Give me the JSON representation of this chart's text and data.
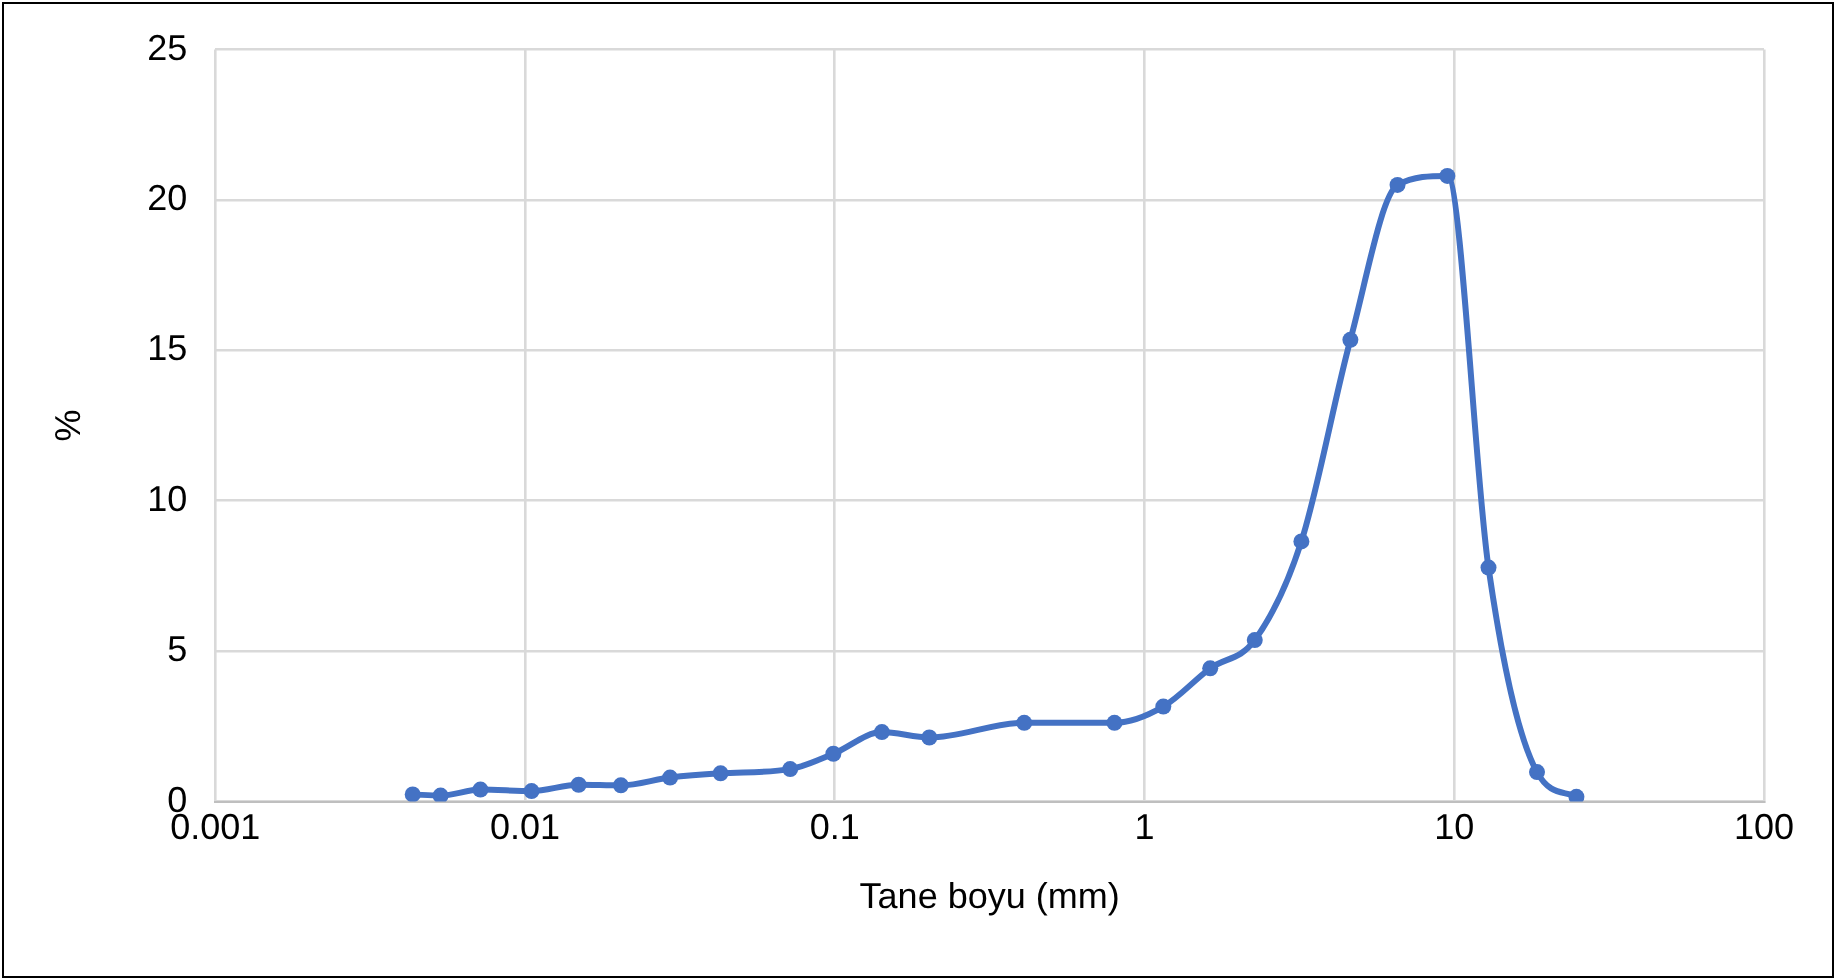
{
  "chart_data": {
    "type": "line",
    "xlabel": "Tane boyu (mm)",
    "ylabel": "%",
    "log": "x",
    "x": [
      0.00434,
      0.00534,
      0.00718,
      0.0105,
      0.0149,
      0.0204,
      0.0294,
      0.0428,
      0.0718,
      0.099,
      0.142,
      0.202,
      0.409,
      0.8,
      1.15,
      1.63,
      2.27,
      3.21,
      4.62,
      6.56,
      9.5,
      12.9,
      18.5,
      24.8
    ],
    "series": [
      {
        "color": "#4472c4",
        "values": [
          0.24,
          0.2,
          0.4,
          0.35,
          0.56,
          0.54,
          0.8,
          0.94,
          1.08,
          1.59,
          2.31,
          2.13,
          2.62,
          2.62,
          3.16,
          4.43,
          5.37,
          8.65,
          15.35,
          20.5,
          20.8,
          7.78,
          0.98,
          0.16
        ]
      }
    ],
    "xlim": [
      0.001,
      100
    ],
    "xticks": [
      0.001,
      0.01,
      0.1,
      1,
      10,
      100
    ],
    "ylim": [
      0,
      25
    ],
    "yticks": [
      0,
      5,
      10,
      15,
      20,
      25
    ],
    "grid": true,
    "legend": false,
    "marker": "circle",
    "line_style": "solid"
  }
}
